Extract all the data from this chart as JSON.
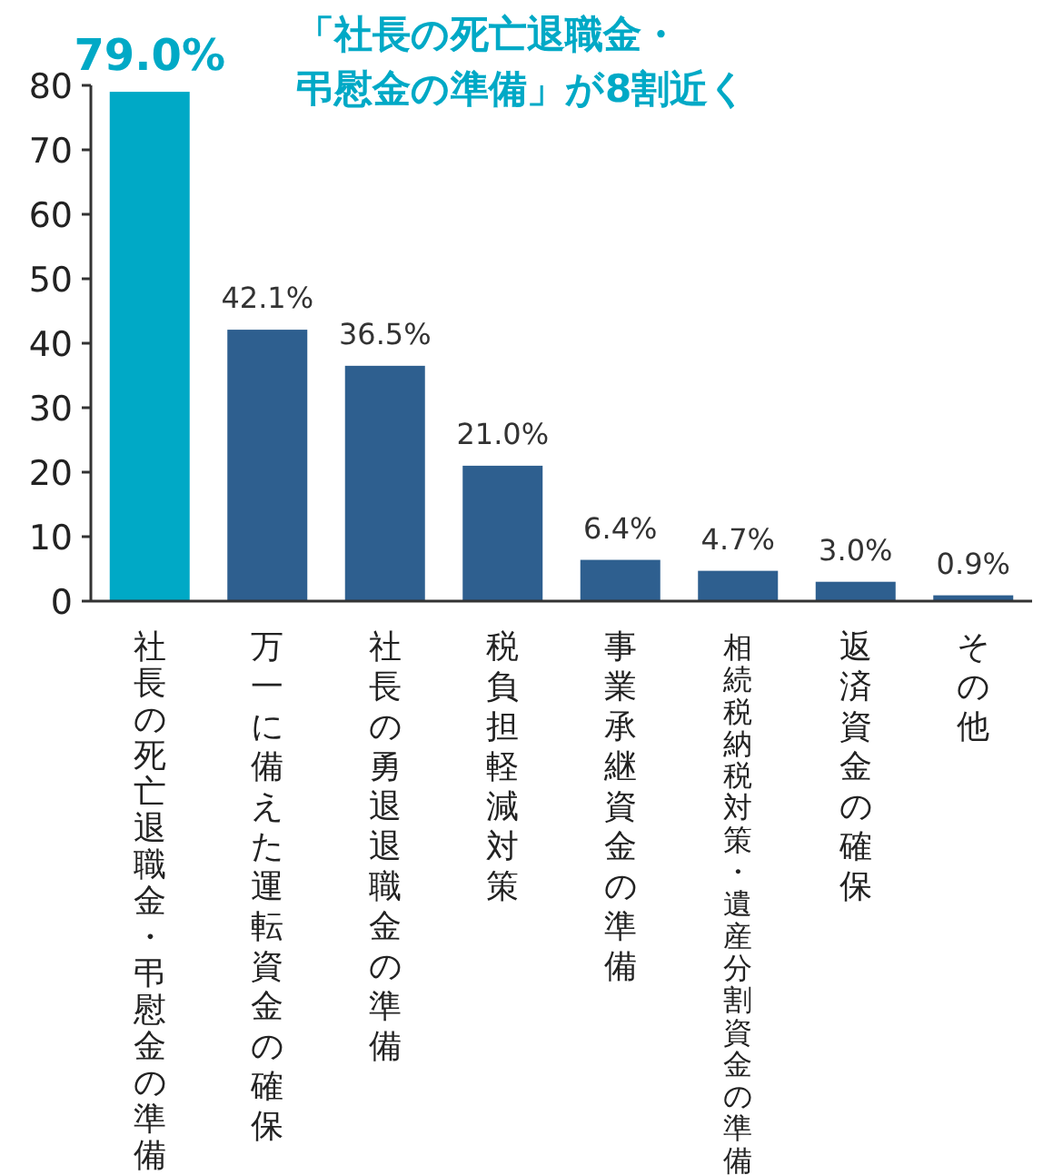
{
  "chart_data": {
    "type": "bar",
    "title": "「社長の死亡退職金・弔慰金の準備」が8割近く",
    "categories": [
      "社長の死亡退職金・弔慰金の準備",
      "万一に備えた運転資金の確保",
      "社長の勇退退職金の準備",
      "税負担軽減対策",
      "事業承継資金の準備",
      "相続税納税対策・遺産分割資金の準備",
      "返済資金の確保",
      "その他"
    ],
    "values": [
      79.0,
      42.1,
      36.5,
      21.0,
      6.4,
      4.7,
      3.0,
      0.9
    ],
    "value_labels": [
      "79.0%",
      "42.1%",
      "36.5%",
      "21.0%",
      "6.4%",
      "4.7%",
      "3.0%",
      "0.9%"
    ],
    "colors": [
      "#00a9c6",
      "#2e5f8f",
      "#2e5f8f",
      "#2e5f8f",
      "#2e5f8f",
      "#2e5f8f",
      "#2e5f8f",
      "#2e5f8f"
    ],
    "ylim": [
      0,
      80
    ],
    "yticks": [
      0,
      10,
      20,
      30,
      40,
      50,
      60,
      70,
      80
    ],
    "grid": false
  }
}
